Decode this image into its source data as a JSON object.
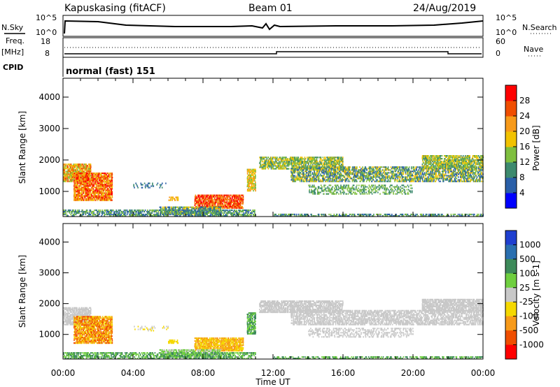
{
  "header": {
    "station": "Kapuskasing (fitACF)",
    "beam": "Beam 01",
    "date": "24/Aug/2019"
  },
  "noise_panel": {
    "left_label": "N.Sky",
    "right_label": "N.Search",
    "ytick_top": "10^5",
    "ytick_bottom": "10^0"
  },
  "freq_panel": {
    "left_label": "Freq.",
    "left_unit": "[MHz]",
    "left_top": "18",
    "left_bottom": "8",
    "right_top": "60",
    "right_bottom": "0",
    "right_label": "Nave"
  },
  "cpid_panel": {
    "label": "CPID",
    "mode": "normal (fast) 151"
  },
  "chart_data": [
    {
      "type": "heatmap",
      "name": "power",
      "ylabel": "Slant Range [km]",
      "yticks": [
        "1000",
        "2000",
        "3000",
        "4000"
      ],
      "ylim": [
        200,
        4600
      ],
      "x": [
        "00:00",
        "04:00",
        "08:00",
        "12:00",
        "16:00",
        "20:00",
        "00:00"
      ],
      "colorbar": {
        "label": "Power [dB]",
        "ticks": [
          "4",
          "8",
          "12",
          "16",
          "20",
          "24",
          "28"
        ],
        "colors": [
          "#0000ff",
          "#2a5fa8",
          "#3d8a6e",
          "#7fbf3f",
          "#f2c200",
          "#f79a1a",
          "#f04e00",
          "#ff0000"
        ]
      }
    },
    {
      "type": "heatmap",
      "name": "velocity",
      "ylabel": "Slant Range [km]",
      "yticks": [
        "1000",
        "2000",
        "3000",
        "4000"
      ],
      "ylim": [
        200,
        4600
      ],
      "x": [
        "00:00",
        "04:00",
        "08:00",
        "12:00",
        "16:00",
        "20:00",
        "00:00"
      ],
      "colorbar": {
        "label": "Velocity [m s-1]",
        "ticks": [
          "1000",
          "500",
          "100",
          "25",
          "-25",
          "-100",
          "-500",
          "-1000"
        ],
        "colors": [
          "#1f3fd0",
          "#2a6fb0",
          "#3d8a5a",
          "#6fcf3f",
          "#c8c8c8",
          "#f5d800",
          "#f79a1a",
          "#f04e00",
          "#ff0000"
        ]
      }
    }
  ],
  "xaxis": {
    "label": "Time UT",
    "ticks": [
      "00:00",
      "04:00",
      "08:00",
      "12:00",
      "16:00",
      "20:00",
      "00:00"
    ]
  }
}
